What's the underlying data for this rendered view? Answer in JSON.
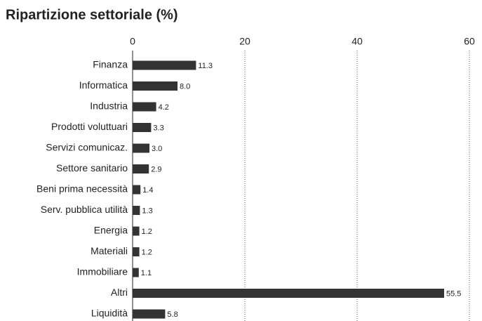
{
  "chart_data": {
    "type": "bar",
    "orientation": "horizontal",
    "title": "Ripartizione settoriale (%)",
    "categories": [
      "Finanza",
      "Informatica",
      "Industria",
      "Prodotti voluttuari",
      "Servizi comunicaz.",
      "Settore sanitario",
      "Beni prima necessità",
      "Serv. pubblica utilità",
      "Energia",
      "Materiali",
      "Immobiliare",
      "Altri",
      "Liquidità"
    ],
    "values": [
      11.3,
      8.0,
      4.2,
      3.3,
      3.0,
      2.9,
      1.4,
      1.3,
      1.2,
      1.2,
      1.1,
      55.5,
      5.8
    ],
    "value_labels": [
      "11.3",
      "8.0",
      "4.2",
      "3.3",
      "3.0",
      "2.9",
      "1.4",
      "1.3",
      "1.2",
      "1.2",
      "1.1",
      "55.5",
      "5.8"
    ],
    "color": "#333333",
    "xlim": [
      0,
      60
    ],
    "xticks": [
      0,
      20,
      40,
      60
    ],
    "grid": true
  }
}
